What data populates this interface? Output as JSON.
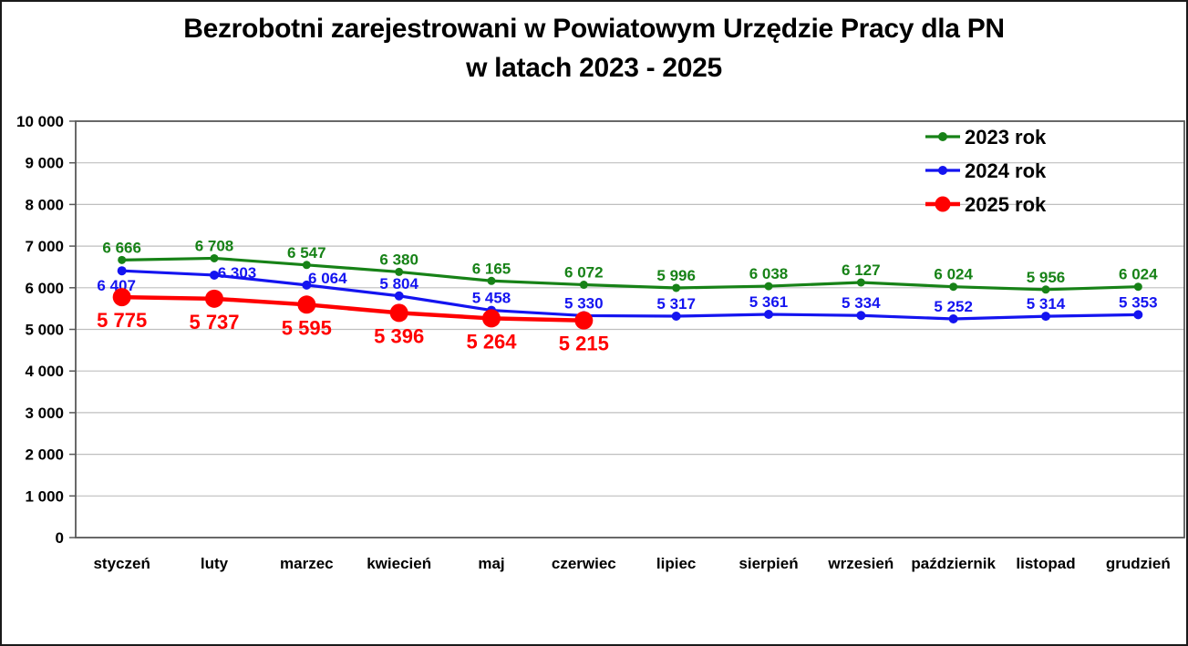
{
  "title": {
    "line1": "Bezrobotni zarejestrowani w Powiatowym Urzędzie Pracy dla PN",
    "line2": "w latach 2023 - 2025"
  },
  "chart_data": {
    "type": "line",
    "title": "Bezrobotni zarejestrowani w Powiatowym Urzędzie Pracy dla PN w latach 2023 - 2025",
    "categories": [
      "styczeń",
      "luty",
      "marzec",
      "kwiecień",
      "maj",
      "czerwiec",
      "lipiec",
      "sierpień",
      "wrzesień",
      "październik",
      "listopad",
      "grudzień"
    ],
    "y_axis": {
      "min": 0,
      "max": 10000,
      "step": 1000,
      "tick_labels": [
        "0",
        "1 000",
        "2 000",
        "3 000",
        "4 000",
        "5 000",
        "6 000",
        "7 000",
        "8 000",
        "9 000",
        "10 000"
      ]
    },
    "grid": "horizontal",
    "colors": {
      "gridline": "#BFBFBF",
      "plot_border": "#595959",
      "axis_text": "#000000"
    },
    "legend": {
      "position": "top-right-inside"
    },
    "series": [
      {
        "name": "2023 rok",
        "color": "#178217",
        "values": [
          6666,
          6708,
          6547,
          6380,
          6165,
          6072,
          5996,
          6038,
          6127,
          6024,
          5956,
          6024
        ],
        "labels": [
          "6 666",
          "6 708",
          "6 547",
          "6 380",
          "6 165",
          "6 072",
          "5 996",
          "6 038",
          "6 127",
          "6 024",
          "5 956",
          "6 024"
        ],
        "label_position": "above",
        "label_dy": -8,
        "label_font_size": 17,
        "marker_radius": 4.5,
        "legend_marker_radius": 5,
        "line_width": 3.2,
        "label_offsets": {}
      },
      {
        "name": "2024 rok",
        "color": "#1414F0",
        "values": [
          6407,
          6303,
          6064,
          5804,
          5458,
          5330,
          5317,
          5361,
          5334,
          5252,
          5314,
          5353
        ],
        "labels": [
          "6 407",
          "6 303",
          "6 064",
          "5 804",
          "5 458",
          "5 330",
          "5 317",
          "5 361",
          "5 334",
          "5 252",
          "5 314",
          "5 353"
        ],
        "label_position": "above",
        "label_dy": -8,
        "label_font_size": 17,
        "marker_radius": 5,
        "legend_marker_radius": 5,
        "line_width": 3.2,
        "label_offsets": {
          "0": {
            "dx": -6,
            "dy": 30
          },
          "1": {
            "dx": 25,
            "dy": 11
          },
          "2": {
            "dx": 23,
            "dy": 6
          }
        }
      },
      {
        "name": "2025 rok",
        "color": "#FF0000",
        "values": [
          5775,
          5737,
          5595,
          5396,
          5264,
          5215
        ],
        "labels": [
          "5 775",
          "5 737",
          "5 595",
          "5 396",
          "5 264",
          "5 215"
        ],
        "label_position": "below",
        "label_dy": 33,
        "label_font_size": 22,
        "marker_radius": 10,
        "legend_marker_radius": 8.5,
        "line_width": 4.5,
        "label_offsets": {}
      }
    ]
  }
}
